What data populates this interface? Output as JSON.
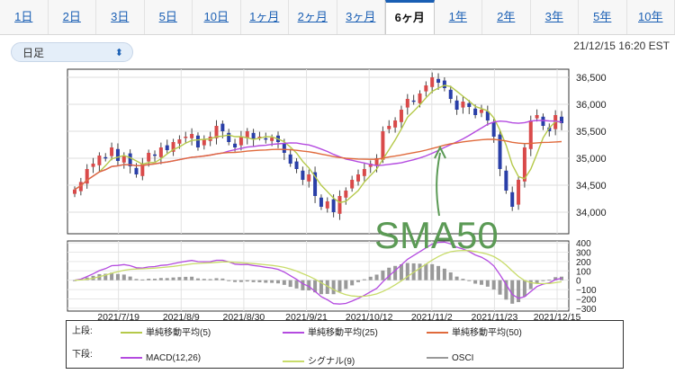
{
  "tabs": [
    {
      "label": "1日"
    },
    {
      "label": "2日"
    },
    {
      "label": "3日"
    },
    {
      "label": "5日"
    },
    {
      "label": "10日"
    },
    {
      "label": "1ヶ月"
    },
    {
      "label": "2ヶ月"
    },
    {
      "label": "3ヶ月"
    },
    {
      "label": "6ヶ月",
      "active": true
    },
    {
      "label": "1年"
    },
    {
      "label": "2年"
    },
    {
      "label": "3年"
    },
    {
      "label": "5年"
    },
    {
      "label": "10年"
    }
  ],
  "period_select": {
    "value": "日足"
  },
  "timestamp": "21/12/15 16:20 EST",
  "annotation": {
    "text": "SMA50"
  },
  "chart_data": [
    {
      "type": "candlestick",
      "y_ticks": [
        "36,500",
        "36,000",
        "35,500",
        "35,000",
        "34,500",
        "34,000"
      ],
      "ylim": [
        33600,
        36650
      ],
      "x_tick_labels": [
        "2021/7/19",
        "2021/8/9",
        "2021/8/30",
        "2021/9/21",
        "2021/10/12",
        "2021/11/2",
        "2021/11/23",
        "2021/12/15"
      ],
      "series": [
        {
          "name": "単純移動平均(5)",
          "color": "#b5c94a"
        },
        {
          "name": "単純移動平均(25)",
          "color": "#b44be0"
        },
        {
          "name": "単純移動平均(50)",
          "color": "#e06a3c"
        }
      ],
      "close": [
        34420,
        34560,
        34800,
        34900,
        35050,
        35000,
        35200,
        34950,
        35050,
        34850,
        34700,
        34900,
        35100,
        35050,
        35200,
        35150,
        35300,
        35350,
        35400,
        35450,
        35200,
        35350,
        35400,
        35600,
        35500,
        35300,
        35200,
        35400,
        35500,
        35350,
        35400,
        35350,
        35380,
        35300,
        35100,
        34900,
        34800,
        34600,
        34700,
        34300,
        34100,
        34200,
        34000,
        34300,
        34400,
        34600,
        34700,
        34800,
        34900,
        35000,
        35500,
        35600,
        35700,
        35900,
        36100,
        36050,
        36200,
        36350,
        36500,
        36400,
        36300,
        36100,
        35900,
        36050,
        35950,
        35800,
        35900,
        35700,
        35400,
        34800,
        34400,
        34100,
        34600,
        35200,
        35700,
        35800,
        35600,
        35500,
        35800,
        35650
      ]
    },
    {
      "type": "line",
      "y_ticks": [
        "400",
        "300",
        "200",
        "100",
        "0",
        "−100",
        "−200",
        "−300"
      ],
      "ylim": [
        -330,
        420
      ],
      "series": [
        {
          "name": "MACD(12,26)",
          "color": "#b44be0"
        },
        {
          "name": "シグナル(9)",
          "color": "#c8dc6a"
        },
        {
          "name": "OSCI",
          "color": "#999999"
        }
      ]
    }
  ],
  "legend": {
    "upper_label": "上段:",
    "lower_label": "下段:",
    "upper_items": [
      {
        "label": "単純移動平均(5)",
        "color": "#b5c94a"
      },
      {
        "label": "単純移動平均(25)",
        "color": "#b44be0"
      },
      {
        "label": "単純移動平均(50)",
        "color": "#e06a3c"
      }
    ],
    "lower_items": [
      {
        "label": "MACD(12,26)",
        "color": "#b44be0"
      },
      {
        "label": "シグナル(9)",
        "color": "#c8dc6a"
      },
      {
        "label": "OSCI",
        "color": "#999999"
      }
    ]
  }
}
